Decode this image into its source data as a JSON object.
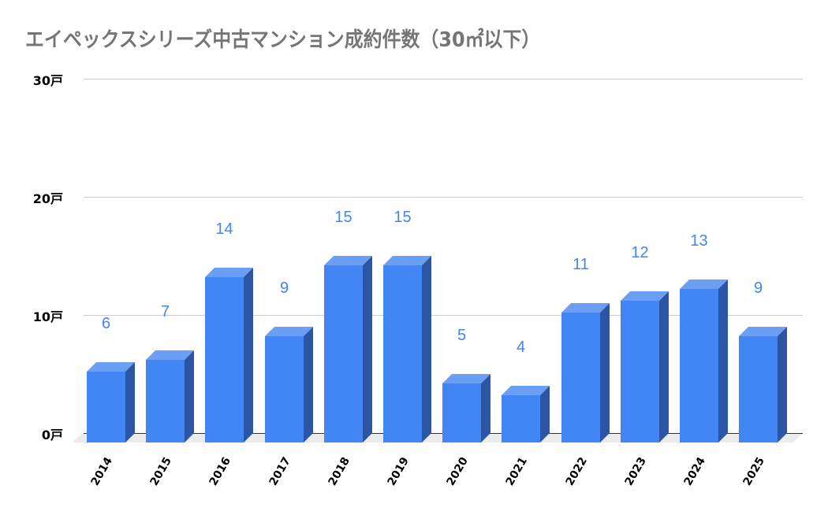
{
  "chart_data": {
    "type": "bar",
    "style": "3d-column",
    "title": "エイペックスシリーズ中古マンション成約件数（30㎡以下）",
    "xlabel": "",
    "ylabel": "",
    "categories": [
      "2014",
      "2015",
      "2016",
      "2017",
      "2018",
      "2019",
      "2020",
      "2021",
      "2022",
      "2023",
      "2024",
      "2025"
    ],
    "values": [
      6,
      7,
      14,
      9,
      15,
      15,
      5,
      4,
      11,
      12,
      13,
      9
    ],
    "ylim": [
      0,
      30
    ],
    "y_ticks": [
      "0戸",
      "10戸",
      "20戸",
      "30戸"
    ],
    "y_unit": "戸",
    "grid": true,
    "legend": "none",
    "data_labels": true,
    "colors": {
      "bar_front": "#4285f4",
      "bar_side": "#2c56a3",
      "bar_top": "#6a9ff5",
      "label": "#4285f4",
      "grid": "#cccccc",
      "title": "#757575"
    }
  }
}
